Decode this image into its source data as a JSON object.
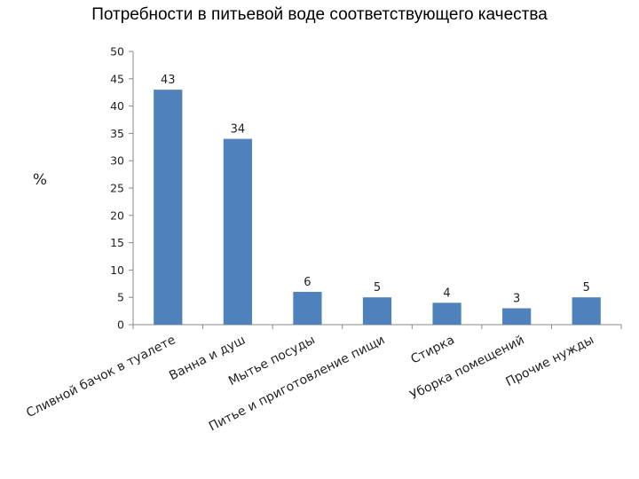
{
  "chart_data": {
    "type": "bar",
    "title": "Потребности в питьевой воде соответствующего качества",
    "ylabel": "%",
    "xlabel": "",
    "ylim": [
      0,
      50
    ],
    "yticks": [
      0,
      5,
      10,
      15,
      20,
      25,
      30,
      35,
      40,
      45,
      50
    ],
    "grid": false,
    "legend": "none",
    "categories": [
      "Сливной бачок в туалете",
      "Ванна и душ",
      "Мытье посуды",
      "Питье и приготовление пищи",
      "Стирка",
      "Уборка помещений",
      "Прочие нужды"
    ],
    "values": [
      43,
      34,
      6,
      5,
      4,
      3,
      5
    ],
    "data_labels": [
      "43",
      "34",
      "6",
      "5",
      "4",
      "3",
      "5"
    ],
    "bar_color": "#4f81bd"
  }
}
